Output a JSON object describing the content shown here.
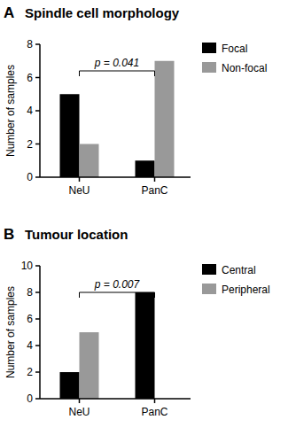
{
  "chart_data": [
    {
      "type": "bar",
      "panel_label": "A",
      "title": "Spindle cell morphology",
      "y_label": "Number of samples",
      "categories": [
        "NeU",
        "PanC"
      ],
      "series": [
        {
          "name": "Focal",
          "color": "#000000",
          "values": [
            5,
            1
          ]
        },
        {
          "name": "Non-focal",
          "color": "#999999",
          "values": [
            2,
            7
          ]
        }
      ],
      "ylim": [
        0,
        8
      ],
      "yticks": [
        0,
        2,
        4,
        6,
        8
      ],
      "legend": "right",
      "annotation": "p = 0.041"
    },
    {
      "type": "bar",
      "panel_label": "B",
      "title": "Tumour location",
      "y_label": "Number of samples",
      "categories": [
        "NeU",
        "PanC"
      ],
      "series": [
        {
          "name": "Central",
          "color": "#000000",
          "values": [
            2,
            8
          ]
        },
        {
          "name": "Peripheral",
          "color": "#999999",
          "values": [
            5,
            0
          ]
        }
      ],
      "ylim": [
        0,
        10
      ],
      "yticks": [
        0,
        2,
        4,
        6,
        8,
        10
      ],
      "legend": "right",
      "annotation": "p = 0.007"
    }
  ]
}
